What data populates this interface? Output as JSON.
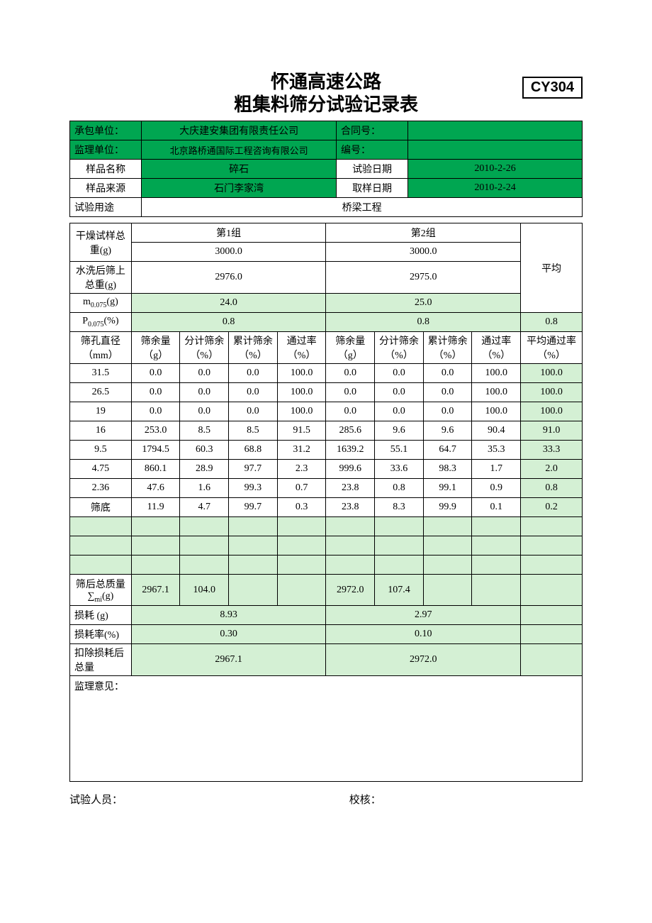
{
  "code": "CY304",
  "title1": "怀通高速公路",
  "title2": "粗集料筛分试验记录表",
  "meta": {
    "contractor_l": "承包单位：",
    "contractor_v": "大庆建安集团有限责任公司",
    "contractno_l": "合同号：",
    "contractno_v": "",
    "supervisor_l": "监理单位：",
    "supervisor_v": "北京路桥通国际工程咨询有限公司",
    "serial_l": "编号：",
    "serial_v": "",
    "sample_name_l": "样品名称",
    "sample_name_v": "碎石",
    "test_date_l": "试验日期",
    "test_date_v": "2010-2-26",
    "sample_src_l": "样品来源",
    "sample_src_v": "石门李家湾",
    "sample_date_l": "取样日期",
    "sample_date_v": "2010-2-24",
    "purpose_l": "试验用途",
    "purpose_v": "桥梁工程"
  },
  "labels": {
    "dry": "干燥试样总重(g)",
    "g1": "第1组",
    "g2": "第2组",
    "avg": "平均",
    "wash": "水洗后筛上总重(g)",
    "m0075": "m",
    "m0075_sub": "0.075",
    "m_unit": "(g)",
    "p0075": "P",
    "p_unit": "(%)",
    "sieve": "筛孔直径（mm）",
    "residue": "筛余量（g）",
    "partial": "分计筛余（%）",
    "cum": "累计筛余（%）",
    "pass": "通过率（%）",
    "avgpass": "平均通过率（%）",
    "bottom": "筛底",
    "aftermass": "筛后总质量∑",
    "aftermass_sub": "mi",
    "aftermass_unit": "(g)",
    "loss_g": "损耗 (g)",
    "loss_pct": "损耗率(%)",
    "deduct": "扣除损耗后总量",
    "opinion": "监理意见：",
    "tester": "试验人员：",
    "checker": "校核："
  },
  "vals": {
    "dry1": "3000.0",
    "dry2": "3000.0",
    "wash1": "2976.0",
    "wash2": "2975.0",
    "m1": "24.0",
    "m2": "25.0",
    "p1": "0.8",
    "p2": "0.8",
    "pavg": "0.8",
    "after_g1_a": "2967.1",
    "after_g1_b": "104.0",
    "after_g2_a": "2972.0",
    "after_g2_b": "107.4",
    "loss_g1": "8.93",
    "loss_g2": "2.97",
    "loss_p1": "0.30",
    "loss_p2": "0.10",
    "deduct1": "2967.1",
    "deduct2": "2972.0"
  },
  "rows": [
    {
      "d": "31.5",
      "r1": "0.0",
      "p1": "0.0",
      "c1": "0.0",
      "t1": "100.0",
      "r2": "0.0",
      "p2": "0.0",
      "c2": "0.0",
      "t2": "100.0",
      "a": "100.0",
      "hl": true
    },
    {
      "d": "26.5",
      "r1": "0.0",
      "p1": "0.0",
      "c1": "0.0",
      "t1": "100.0",
      "r2": "0.0",
      "p2": "0.0",
      "c2": "0.0",
      "t2": "100.0",
      "a": "100.0",
      "hl": true
    },
    {
      "d": "19",
      "r1": "0.0",
      "p1": "0.0",
      "c1": "0.0",
      "t1": "100.0",
      "r2": "0.0",
      "p2": "0.0",
      "c2": "0.0",
      "t2": "100.0",
      "a": "100.0",
      "hl": true
    },
    {
      "d": "16",
      "r1": "253.0",
      "p1": "8.5",
      "c1": "8.5",
      "t1": "91.5",
      "r2": "285.6",
      "p2": "9.6",
      "c2": "9.6",
      "t2": "90.4",
      "a": "91.0",
      "hl": true
    },
    {
      "d": "9.5",
      "r1": "1794.5",
      "p1": "60.3",
      "c1": "68.8",
      "t1": "31.2",
      "r2": "1639.2",
      "p2": "55.1",
      "c2": "64.7",
      "t2": "35.3",
      "a": "33.3",
      "hl": true
    },
    {
      "d": "4.75",
      "r1": "860.1",
      "p1": "28.9",
      "c1": "97.7",
      "t1": "2.3",
      "r2": "999.6",
      "p2": "33.6",
      "c2": "98.3",
      "t2": "1.7",
      "a": "2.0",
      "hl": true
    },
    {
      "d": "2.36",
      "r1": "47.6",
      "p1": "1.6",
      "c1": "99.3",
      "t1": "0.7",
      "r2": "23.8",
      "p2": "0.8",
      "c2": "99.1",
      "t2": "0.9",
      "a": "0.8",
      "hl": true
    },
    {
      "d": "筛底",
      "r1": "11.9",
      "p1": "4.7",
      "c1": "99.7",
      "t1": "0.3",
      "r2": "23.8",
      "p2": "8.3",
      "c2": "99.9",
      "t2": "0.1",
      "a": "0.2",
      "hl": true
    }
  ],
  "colors": {
    "dark": "#00a651",
    "light": "#d4f0d4"
  }
}
